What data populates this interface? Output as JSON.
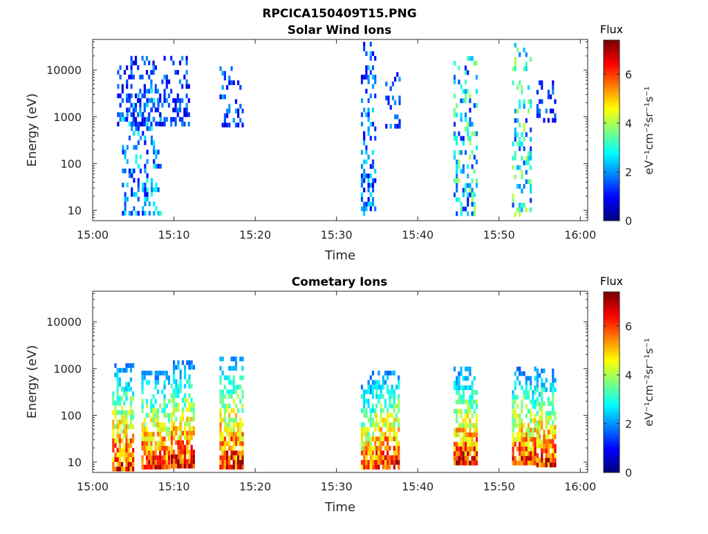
{
  "figure": {
    "filename_title": "RPCICA150409T15.PNG"
  },
  "colors": {
    "background": "#ffffff",
    "axes": "#262626",
    "colormap": "jet"
  },
  "chart_data": [
    {
      "type": "heatmap",
      "title": "Solar Wind Ions",
      "xlabel": "Time",
      "ylabel": "Energy (eV)",
      "x_ticks": [
        "15:00",
        "15:10",
        "15:20",
        "15:30",
        "15:40",
        "15:50",
        "16:00"
      ],
      "xlim": [
        "15:00",
        "16:00"
      ],
      "y_ticks": [
        "10",
        "100",
        "1000",
        "10000"
      ],
      "ylim": [
        6,
        45000
      ],
      "y_scale": "log",
      "colorbar": {
        "title": "Flux",
        "label": "eV⁻¹cm⁻²sr⁻¹s⁻¹",
        "ticks": [
          "0",
          "2",
          "4",
          "6"
        ],
        "range": [
          0,
          7.4
        ]
      },
      "grid": false,
      "bursts": [
        {
          "t_start": 15.06,
          "t_end": 15.14,
          "e_min": 8,
          "e_max": 4000,
          "flux_peak": 2.6
        },
        {
          "t_start": 15.05,
          "t_end": 15.2,
          "e_min": 600,
          "e_max": 20000,
          "flux_peak": 1.8
        },
        {
          "t_start": 15.26,
          "t_end": 15.31,
          "e_min": 600,
          "e_max": 12000,
          "flux_peak": 1.8
        },
        {
          "t_start": 15.55,
          "t_end": 15.58,
          "e_min": 7,
          "e_max": 40000,
          "flux_peak": 2.2
        },
        {
          "t_start": 15.6,
          "t_end": 15.63,
          "e_min": 600,
          "e_max": 9000,
          "flux_peak": 2.0
        },
        {
          "t_start": 15.74,
          "t_end": 15.79,
          "e_min": 8,
          "e_max": 25000,
          "flux_peak": 3.4
        },
        {
          "t_start": 15.86,
          "t_end": 15.9,
          "e_min": 8,
          "e_max": 38000,
          "flux_peak": 3.6
        },
        {
          "t_start": 15.91,
          "t_end": 15.95,
          "e_min": 700,
          "e_max": 6000,
          "flux_peak": 1.6
        }
      ]
    },
    {
      "type": "heatmap",
      "title": "Cometary Ions",
      "xlabel": "Time",
      "ylabel": "Energy (eV)",
      "x_ticks": [
        "15:00",
        "15:10",
        "15:20",
        "15:30",
        "15:40",
        "15:50",
        "16:00"
      ],
      "xlim": [
        "15:00",
        "16:00"
      ],
      "y_ticks": [
        "10",
        "100",
        "1000",
        "10000"
      ],
      "ylim": [
        6,
        45000
      ],
      "y_scale": "log",
      "colorbar": {
        "title": "Flux",
        "label": "eV⁻¹cm⁻²sr⁻¹s⁻¹",
        "ticks": [
          "0",
          "2",
          "4",
          "6"
        ],
        "range": [
          0,
          7.4
        ]
      },
      "grid": false,
      "bursts": [
        {
          "t_start": 15.04,
          "t_end": 15.085,
          "e_min": 7,
          "e_max": 1300,
          "flux_peak": 7.0
        },
        {
          "t_start": 15.1,
          "t_end": 15.16,
          "e_min": 7,
          "e_max": 900,
          "flux_peak": 7.0
        },
        {
          "t_start": 15.16,
          "t_end": 15.21,
          "e_min": 7,
          "e_max": 1500,
          "flux_peak": 7.2
        },
        {
          "t_start": 15.26,
          "t_end": 15.31,
          "e_min": 7,
          "e_max": 1800,
          "flux_peak": 7.2
        },
        {
          "t_start": 15.55,
          "t_end": 15.58,
          "e_min": 7,
          "e_max": 900,
          "flux_peak": 6.2
        },
        {
          "t_start": 15.58,
          "t_end": 15.63,
          "e_min": 7,
          "e_max": 900,
          "flux_peak": 7.2
        },
        {
          "t_start": 15.74,
          "t_end": 15.79,
          "e_min": 8,
          "e_max": 1100,
          "flux_peak": 7.0
        },
        {
          "t_start": 15.86,
          "t_end": 15.91,
          "e_min": 8,
          "e_max": 1100,
          "flux_peak": 6.8
        },
        {
          "t_start": 15.91,
          "t_end": 15.95,
          "e_min": 8,
          "e_max": 1000,
          "flux_peak": 7.0
        }
      ]
    }
  ]
}
